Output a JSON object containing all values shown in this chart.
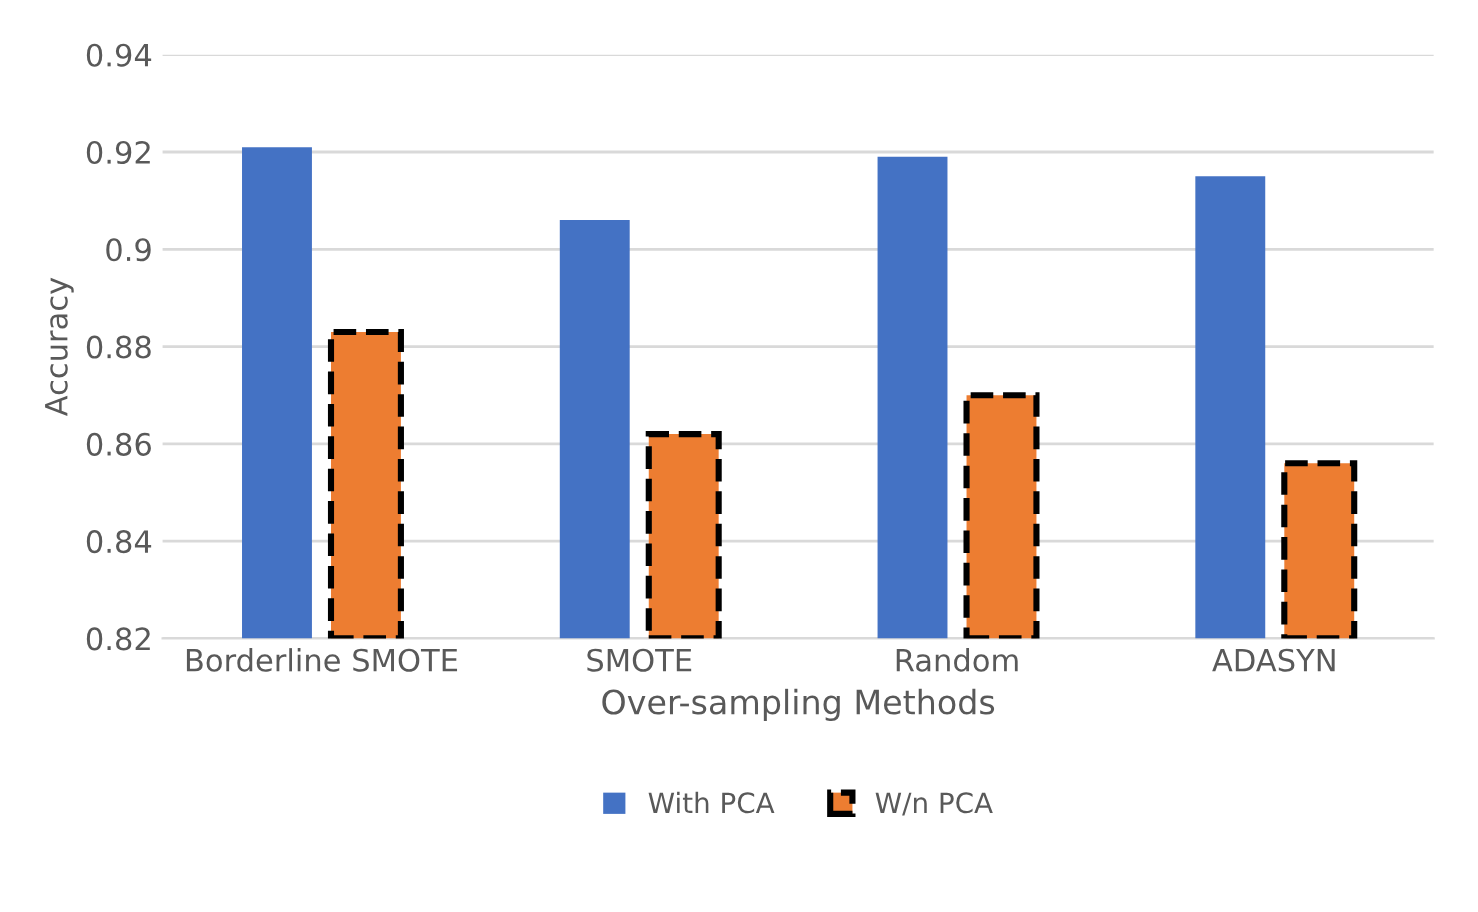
{
  "chart_data": {
    "type": "bar",
    "xlabel": "Over-sampling Methods",
    "ylabel": "Accuracy",
    "categories": [
      "Borderline SMOTE",
      "SMOTE",
      "Random",
      "ADASYN"
    ],
    "series": [
      {
        "name": "With PCA",
        "color": "#4472c4",
        "values": [
          0.921,
          0.906,
          0.919,
          0.915
        ]
      },
      {
        "name": "W/n PCA",
        "color": "#ed7d31",
        "line_style": "dashed",
        "values": [
          0.883,
          0.862,
          0.87,
          0.856
        ]
      }
    ],
    "ylim": [
      0.82,
      0.94
    ],
    "yticks": [
      0.82,
      0.84,
      0.86,
      0.88,
      0.9,
      0.92,
      0.94
    ],
    "grid": "y",
    "legend": "bottom"
  }
}
